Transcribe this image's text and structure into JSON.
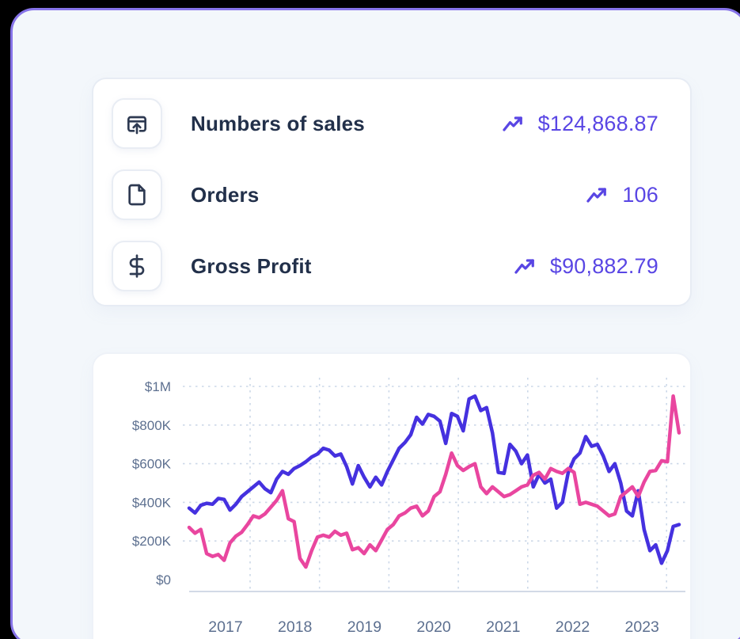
{
  "colors": {
    "background": "#000000",
    "panel_border": "#8673e8",
    "panel_bg": "#f3f7fb",
    "card_bg": "#ffffff",
    "label_text": "#22304a",
    "value_text": "#5946e4",
    "axis_text": "#5d7090",
    "gridline": "#ccd8e8",
    "axis_line": "#c3cede",
    "line_blue": "#4531df",
    "line_pink": "#e9469f"
  },
  "kpi_card": {
    "rows": [
      {
        "label": "Numbers of sales",
        "value": "$124,868.87",
        "icon": "card-arrow-up-icon",
        "trend": "up"
      },
      {
        "label": "Orders",
        "value": "106",
        "icon": "file-icon",
        "trend": "up"
      },
      {
        "label": "Gross Profit",
        "value": "$90,882.79",
        "icon": "dollar-icon",
        "trend": "up"
      }
    ]
  },
  "chart_data": {
    "type": "line",
    "title": "",
    "xlabel": "",
    "ylabel": "",
    "x_tick_labels": [
      "2017",
      "2018",
      "2019",
      "2020",
      "2021",
      "2022",
      "2023"
    ],
    "y_tick_labels": [
      "$1M",
      "$800K",
      "$600K",
      "$400K",
      "$200K",
      "$0"
    ],
    "y_ticks_k": [
      1000,
      800,
      600,
      400,
      200,
      0
    ],
    "ylim_k": [
      0,
      1000
    ],
    "x_range_years": [
      2016.45,
      2023.45
    ],
    "grid": "dotted",
    "legend": "none",
    "series": [
      {
        "id": "blue",
        "color": "#4531df",
        "values_k": [
          370,
          345,
          385,
          395,
          390,
          420,
          415,
          360,
          390,
          430,
          455,
          480,
          505,
          470,
          450,
          520,
          560,
          545,
          575,
          590,
          610,
          635,
          650,
          680,
          670,
          640,
          650,
          585,
          495,
          590,
          530,
          480,
          530,
          490,
          560,
          620,
          680,
          710,
          750,
          840,
          805,
          855,
          845,
          820,
          705,
          860,
          845,
          770,
          935,
          950,
          875,
          890,
          760,
          555,
          550,
          700,
          665,
          600,
          645,
          480,
          545,
          500,
          520,
          370,
          400,
          555,
          625,
          655,
          740,
          690,
          700,
          640,
          560,
          600,
          500,
          355,
          330,
          460,
          260,
          150,
          180,
          85,
          150,
          275,
          285
        ]
      },
      {
        "id": "pink",
        "color": "#e9469f",
        "values_k": [
          270,
          240,
          260,
          135,
          120,
          130,
          100,
          190,
          225,
          245,
          285,
          330,
          320,
          340,
          375,
          410,
          460,
          315,
          300,
          110,
          65,
          150,
          220,
          230,
          220,
          250,
          230,
          240,
          155,
          165,
          135,
          180,
          150,
          205,
          260,
          285,
          330,
          345,
          370,
          380,
          330,
          355,
          430,
          455,
          545,
          655,
          590,
          565,
          585,
          600,
          480,
          445,
          480,
          455,
          430,
          440,
          460,
          480,
          490,
          540,
          555,
          520,
          575,
          560,
          550,
          575,
          555,
          390,
          400,
          390,
          380,
          355,
          330,
          340,
          430,
          455,
          480,
          430,
          505,
          560,
          565,
          615,
          610,
          950,
          760
        ]
      }
    ]
  }
}
